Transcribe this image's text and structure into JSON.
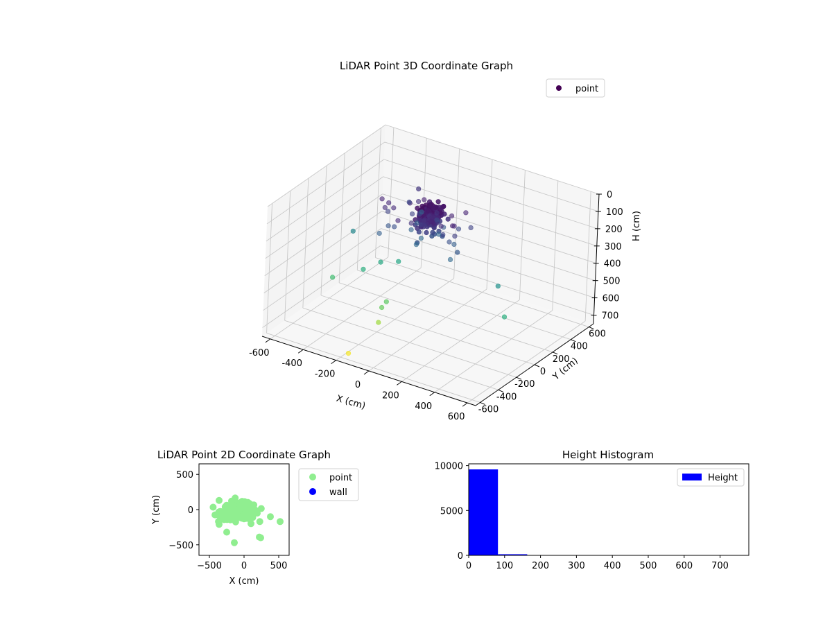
{
  "chart_data": [
    {
      "type": "scatter3d",
      "title": "LiDAR Point 3D Coordinate Graph",
      "xlabel": "X (cm)",
      "ylabel": "Y (cm)",
      "zlabel": "H (cm)",
      "xlim": [
        -650,
        650
      ],
      "ylim": [
        -650,
        650
      ],
      "zlim": [
        0,
        750
      ],
      "z_inverted": true,
      "xticks": [
        -600,
        -400,
        -200,
        0,
        200,
        400,
        600
      ],
      "yticks": [
        -600,
        -400,
        -200,
        0,
        200,
        400,
        600
      ],
      "zticks": [
        0,
        100,
        200,
        300,
        400,
        500,
        600,
        700
      ],
      "legend": {
        "label": "point",
        "color": "#440154",
        "position": "top-right"
      },
      "grid": true,
      "colormap": "viridis",
      "series": [
        {
          "name": "point",
          "cluster": {
            "x": [
              -50,
              60
            ],
            "y": [
              -120,
              50
            ],
            "h": [
              30,
              200
            ],
            "count": 170
          },
          "points": [
            {
              "x": -500,
              "y": 50,
              "h": 350
            },
            {
              "x": -480,
              "y": -200,
              "h": 520
            },
            {
              "x": -350,
              "y": -100,
              "h": 470
            },
            {
              "x": -300,
              "y": 0,
              "h": 450
            },
            {
              "x": -220,
              "y": 50,
              "h": 440
            },
            {
              "x": -150,
              "y": -200,
              "h": 560
            },
            {
              "x": -150,
              "y": -250,
              "h": 575
            },
            {
              "x": -140,
              "y": -300,
              "h": 640
            },
            {
              "x": -180,
              "y": -550,
              "h": 740
            },
            {
              "x": 400,
              "y": 20,
              "h": 380
            },
            {
              "x": 520,
              "y": -120,
              "h": 470
            },
            {
              "x": -250,
              "y": 300,
              "h": 120
            },
            {
              "x": -200,
              "y": 250,
              "h": 220
            },
            {
              "x": 200,
              "y": -80,
              "h": 210
            },
            {
              "x": -250,
              "y": 200,
              "h": 160
            }
          ]
        }
      ]
    },
    {
      "type": "scatter",
      "title": "LiDAR Point 2D Coordinate Graph",
      "xlabel": "X (cm)",
      "ylabel": "Y (cm)",
      "xlim": [
        -650,
        650
      ],
      "ylim": [
        -650,
        650
      ],
      "xticks": [
        -500,
        0,
        500
      ],
      "yticks": [
        -500,
        0,
        500
      ],
      "legend_position": "outside-right",
      "series": [
        {
          "name": "point",
          "color": "#90ee90",
          "cluster": {
            "x": [
              -400,
              200
            ],
            "y": [
              -150,
              80
            ],
            "count": 220
          },
          "points": [
            {
              "x": -360,
              "y": 130
            },
            {
              "x": -180,
              "y": 120
            },
            {
              "x": 0,
              "y": 100
            },
            {
              "x": -360,
              "y": -210
            },
            {
              "x": -250,
              "y": -320
            },
            {
              "x": -140,
              "y": -470
            },
            {
              "x": 220,
              "y": -390
            },
            {
              "x": 240,
              "y": -400
            },
            {
              "x": 380,
              "y": -100
            },
            {
              "x": 520,
              "y": -170
            },
            {
              "x": 190,
              "y": -50
            },
            {
              "x": 100,
              "y": -200
            }
          ]
        },
        {
          "name": "wall",
          "color": "#0000ff",
          "points": []
        }
      ]
    },
    {
      "type": "histogram",
      "title": "Height Histogram",
      "xlabel": "",
      "ylabel": "",
      "xlim": [
        0,
        780
      ],
      "ylim": [
        0,
        10200
      ],
      "xticks": [
        0,
        100,
        200,
        300,
        400,
        500,
        600,
        700
      ],
      "yticks": [
        0,
        5000,
        10000
      ],
      "legend": {
        "label": "Height",
        "color": "#0000ff",
        "position": "top-right"
      },
      "bin_edges": [
        0,
        81.5,
        163,
        244.5,
        326,
        407.5,
        489,
        570.5,
        652,
        733.5,
        815
      ],
      "counts": [
        9580,
        120,
        8,
        6,
        12,
        10,
        5,
        6,
        4,
        3
      ],
      "color": "#0000ff"
    }
  ]
}
